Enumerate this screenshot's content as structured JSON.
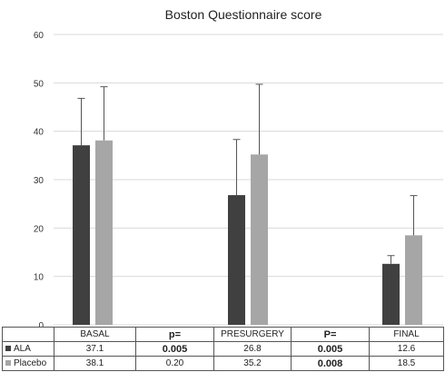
{
  "chart_data": {
    "type": "bar",
    "title": "Boston Questionnaire score",
    "ylim": [
      0,
      60
    ],
    "yticks": [
      0,
      10,
      20,
      30,
      40,
      50,
      60
    ],
    "categories": [
      "BASAL",
      "PRESURGERY",
      "FINAL"
    ],
    "series": [
      {
        "name": "ALA",
        "color": "#404040",
        "values": [
          37.1,
          26.8,
          12.6
        ],
        "error_upper": [
          46.8,
          38.3,
          14.3
        ]
      },
      {
        "name": "Placebo",
        "color": "#a6a6a6",
        "values": [
          38.1,
          35.2,
          18.5
        ],
        "error_upper": [
          49.2,
          49.7,
          26.7
        ]
      }
    ],
    "grid": true,
    "legend": "data table below chart"
  },
  "table": {
    "headers": [
      "",
      "BASAL",
      "p=",
      "PRESURGERY",
      "P=",
      "FINAL"
    ],
    "rows": [
      {
        "label": "ALA",
        "cells": [
          "37.1",
          "0.005",
          "26.8",
          "0.005",
          "12.6"
        ]
      },
      {
        "label": "Placebo",
        "cells": [
          "38.1",
          "0.20",
          "35.2",
          "0.008",
          "18.5"
        ]
      }
    ]
  }
}
